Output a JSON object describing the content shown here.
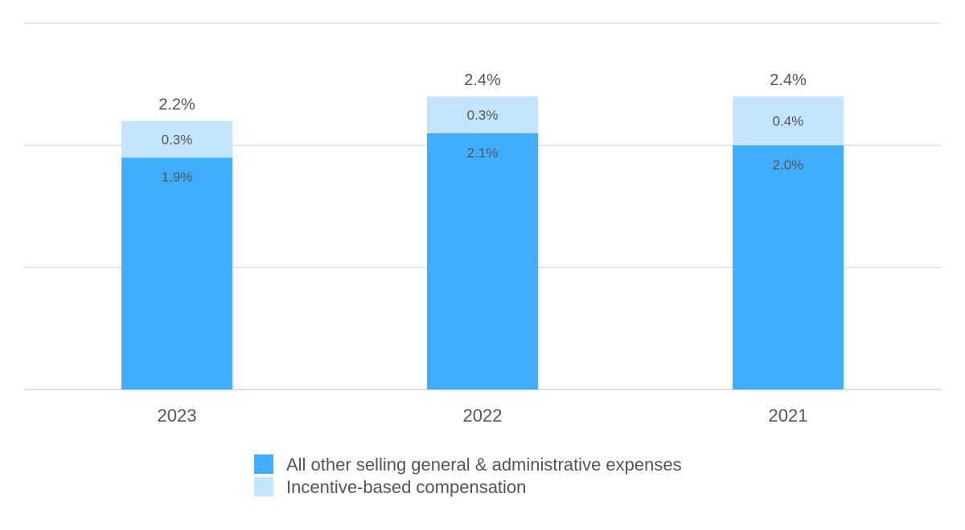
{
  "chart_data": {
    "type": "bar",
    "stacked": true,
    "categories": [
      "2023",
      "2022",
      "2021"
    ],
    "series": [
      {
        "name": "All other selling general & administrative expenses",
        "values": [
          1.9,
          2.1,
          2.0
        ],
        "labels": [
          "1.9%",
          "2.1%",
          "2.0%"
        ],
        "color": "#40adff"
      },
      {
        "name": "Incentive-based compensation",
        "values": [
          0.3,
          0.3,
          0.4
        ],
        "labels": [
          "0.3%",
          "0.3%",
          "0.4%"
        ],
        "color": "#c2e4fc"
      }
    ],
    "totals": [
      2.2,
      2.4,
      2.4
    ],
    "total_labels": [
      "2.2%",
      "2.4%",
      "2.4%"
    ],
    "title": "",
    "xlabel": "",
    "ylabel": "",
    "ylim": [
      0,
      3.0
    ],
    "yticks": [
      0,
      1.0,
      2.0,
      3.0
    ],
    "grid": true,
    "legend_position": "bottom-center"
  }
}
